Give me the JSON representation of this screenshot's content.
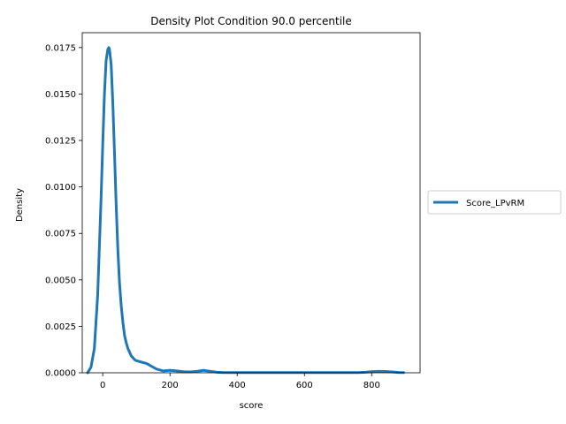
{
  "chart_data": {
    "type": "line",
    "title": "Density Plot Condition 90.0 percentile",
    "xlabel": "score",
    "ylabel": "Density",
    "xlim": [
      -61,
      944
    ],
    "ylim": [
      0,
      0.0183
    ],
    "xticks": [
      0,
      200,
      400,
      600,
      800
    ],
    "yticks": [
      0.0,
      0.0025,
      0.005,
      0.0075,
      0.01,
      0.0125,
      0.015,
      0.0175
    ],
    "ytick_labels": [
      "0.0000",
      "0.0025",
      "0.0050",
      "0.0075",
      "0.0100",
      "0.0125",
      "0.0150",
      "0.0175"
    ],
    "grid": false,
    "legend_position": "center-right outside",
    "series": [
      {
        "name": "Score_LPvRM",
        "color": "#1f77b4",
        "x": [
          -45,
          -35,
          -25,
          -15,
          -5,
          0,
          5,
          10,
          15,
          18,
          20,
          25,
          30,
          35,
          40,
          45,
          50,
          55,
          60,
          65,
          70,
          75,
          80,
          85,
          90,
          95,
          100,
          110,
          120,
          130,
          140,
          150,
          160,
          170,
          180,
          190,
          200,
          210,
          220,
          240,
          260,
          280,
          300,
          320,
          340,
          360,
          400,
          500,
          600,
          700,
          760,
          780,
          800,
          820,
          840,
          860,
          880,
          895
        ],
        "y": [
          0.0,
          0.0003,
          0.0013,
          0.0042,
          0.0094,
          0.0123,
          0.015,
          0.0168,
          0.0174,
          0.0175,
          0.0174,
          0.0166,
          0.0145,
          0.0118,
          0.009,
          0.0066,
          0.0048,
          0.0036,
          0.0027,
          0.002,
          0.0016,
          0.0013,
          0.0011,
          0.0009,
          0.0008,
          0.0007,
          0.00065,
          0.0006,
          0.00055,
          0.0005,
          0.0004,
          0.0003,
          0.0002,
          0.00015,
          0.0001,
          0.00012,
          0.00013,
          0.00012,
          0.0001,
          6e-05,
          5e-05,
          8e-05,
          0.00013,
          8e-05,
          3e-05,
          1e-05,
          1e-05,
          1e-05,
          1e-05,
          1e-05,
          1e-05,
          3e-05,
          6e-05,
          8e-05,
          7e-05,
          5e-05,
          2e-05,
          1e-05
        ]
      }
    ]
  }
}
